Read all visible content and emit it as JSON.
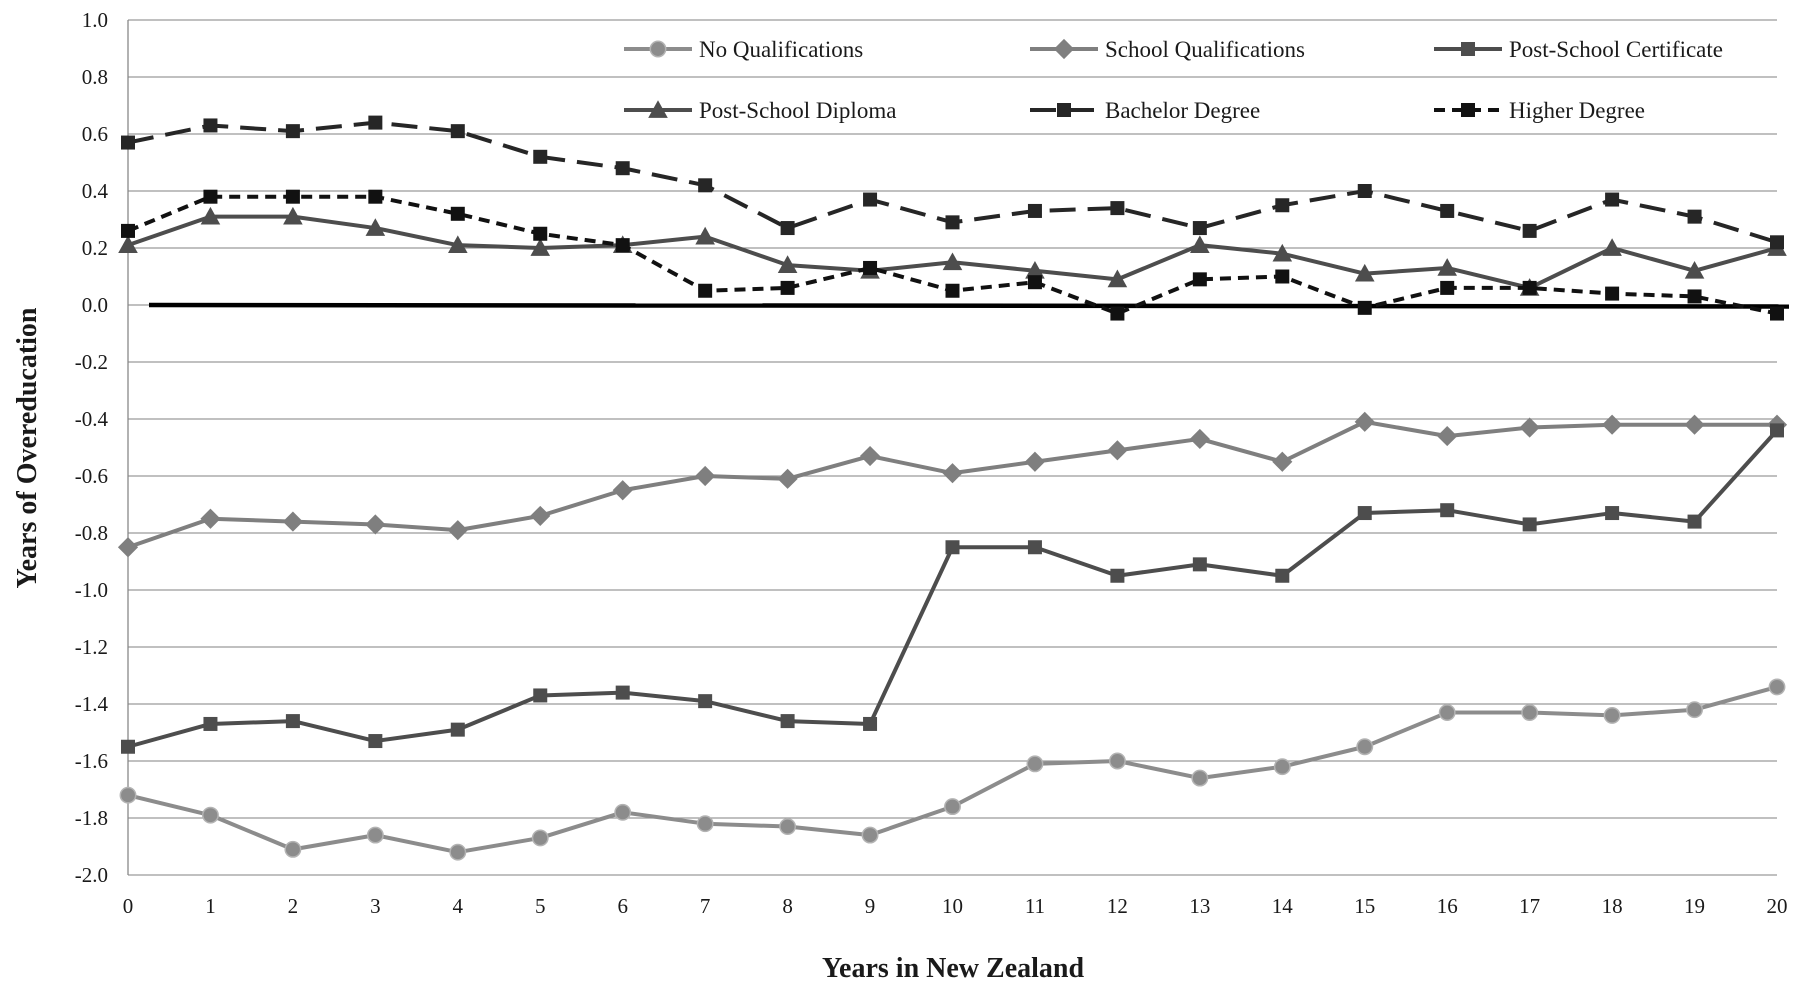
{
  "chart_data": {
    "type": "line",
    "xlabel": "Years in New Zealand",
    "ylabel": "Years of Overeducation",
    "x": [
      0,
      1,
      2,
      3,
      4,
      5,
      6,
      7,
      8,
      9,
      10,
      11,
      12,
      13,
      14,
      15,
      16,
      17,
      18,
      19,
      20
    ],
    "xlim": [
      0,
      20
    ],
    "ylim": [
      -2.0,
      1.0
    ],
    "yticks": [
      "1.0",
      "0.8",
      "0.6",
      "0.4",
      "0.2",
      "0.0",
      "-0.2",
      "-0.4",
      "-0.6",
      "-0.8",
      "-1.0",
      "-1.2",
      "-1.4",
      "-1.6",
      "-1.8",
      "-2.0"
    ],
    "grid": true,
    "reference_line": 0.0,
    "legend_position": "top",
    "series": [
      {
        "name": "No Qualifications",
        "marker": "circle",
        "color": "#8c8c8c",
        "dash": "solid",
        "values": [
          -1.72,
          -1.79,
          -1.91,
          -1.86,
          -1.92,
          -1.87,
          -1.78,
          -1.82,
          -1.83,
          -1.86,
          -1.76,
          -1.61,
          -1.6,
          -1.66,
          -1.62,
          -1.55,
          -1.43,
          -1.43,
          -1.44,
          -1.42,
          -1.34
        ]
      },
      {
        "name": "School Qualifications",
        "marker": "diamond",
        "color": "#7f7f7f",
        "dash": "solid",
        "values": [
          -0.85,
          -0.75,
          -0.76,
          -0.77,
          -0.79,
          -0.74,
          -0.65,
          -0.6,
          -0.61,
          -0.53,
          -0.59,
          -0.55,
          -0.51,
          -0.47,
          -0.55,
          -0.41,
          -0.46,
          -0.43,
          -0.42,
          -0.42,
          -0.42
        ]
      },
      {
        "name": "Post-School Certificate",
        "marker": "square",
        "color": "#4d4d4d",
        "dash": "solid",
        "values": [
          -1.55,
          -1.47,
          -1.46,
          -1.53,
          -1.49,
          -1.37,
          -1.36,
          -1.39,
          -1.46,
          -1.47,
          -0.85,
          -0.85,
          -0.95,
          -0.91,
          -0.95,
          -0.73,
          -0.72,
          -0.77,
          -0.73,
          -0.76,
          -0.44
        ]
      },
      {
        "name": "Post-School  Diploma",
        "marker": "triangle",
        "color": "#4d4d4d",
        "dash": "solid",
        "values": [
          0.21,
          0.31,
          0.31,
          0.27,
          0.21,
          0.2,
          0.21,
          0.24,
          0.14,
          0.12,
          0.15,
          0.12,
          0.09,
          0.21,
          0.18,
          0.11,
          0.13,
          0.06,
          0.2,
          0.12,
          0.2
        ]
      },
      {
        "name": "Bachelor Degree",
        "marker": "square",
        "color": "#262626",
        "dash": "longdash",
        "values": [
          0.57,
          0.63,
          0.61,
          0.64,
          0.61,
          0.52,
          0.48,
          0.42,
          0.27,
          0.37,
          0.29,
          0.33,
          0.34,
          0.27,
          0.35,
          0.4,
          0.33,
          0.26,
          0.37,
          0.31,
          0.22
        ]
      },
      {
        "name": "Higher Degree",
        "marker": "square",
        "color": "#111111",
        "dash": "shortdash",
        "values": [
          0.26,
          0.38,
          0.38,
          0.38,
          0.32,
          0.25,
          0.21,
          0.05,
          0.06,
          0.13,
          0.05,
          0.08,
          -0.03,
          0.09,
          0.1,
          -0.01,
          0.06,
          0.06,
          0.04,
          0.03,
          -0.03
        ]
      }
    ]
  }
}
